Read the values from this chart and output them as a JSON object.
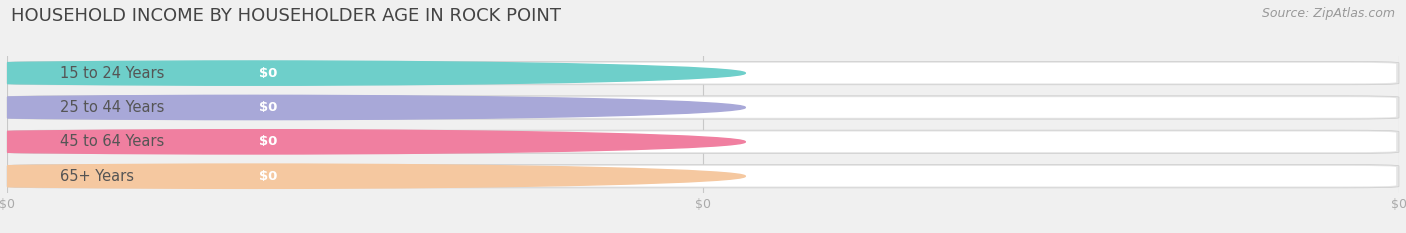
{
  "title": "HOUSEHOLD INCOME BY HOUSEHOLDER AGE IN ROCK POINT",
  "source": "Source: ZipAtlas.com",
  "categories": [
    "15 to 24 Years",
    "25 to 44 Years",
    "45 to 64 Years",
    "65+ Years"
  ],
  "values": [
    0,
    0,
    0,
    0
  ],
  "bar_colors": [
    "#6ecfca",
    "#a8a8d8",
    "#f07fa0",
    "#f5c8a0"
  ],
  "background_color": "#f0f0f0",
  "title_fontsize": 13,
  "label_fontsize": 10.5,
  "value_fontsize": 9.5,
  "source_fontsize": 9,
  "bar_bg_color": "#e5e5e5",
  "bar_white_section": "#ffffff",
  "tick_color": "#aaaaaa",
  "title_color": "#444444",
  "label_color": "#555555"
}
